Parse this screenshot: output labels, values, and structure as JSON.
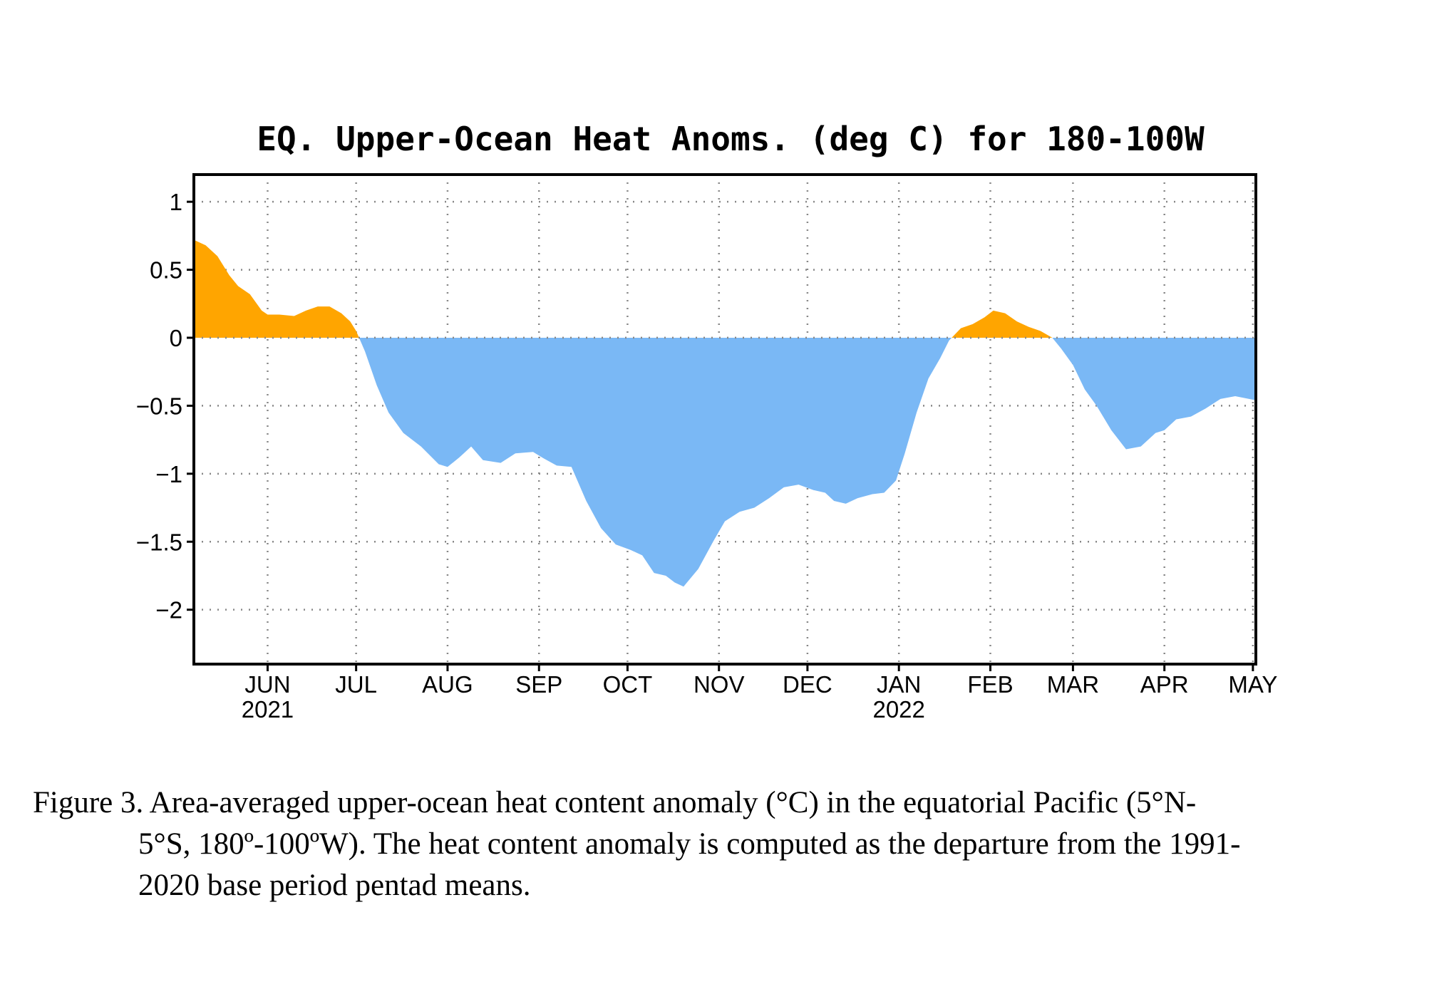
{
  "chart_data": {
    "type": "area",
    "title": "EQ. Upper-Ocean Heat Anoms. (deg C) for 180-100W",
    "xlabel": "",
    "ylabel": "",
    "ylim": [
      -2.4,
      1.2
    ],
    "yticks": [
      1,
      0.5,
      0,
      -0.5,
      -1,
      -1.5,
      -2
    ],
    "ytick_labels": [
      "1",
      "0.5",
      "0",
      "−0.5",
      "−1",
      "−1.5",
      "−2"
    ],
    "grid": true,
    "xlim": [
      "2021-05-07",
      "2022-05-02"
    ],
    "x_ticks": [
      {
        "date": "2021-06-01",
        "label": "JUN",
        "year": "2021"
      },
      {
        "date": "2021-07-01",
        "label": "JUL",
        "year": ""
      },
      {
        "date": "2021-08-01",
        "label": "AUG",
        "year": ""
      },
      {
        "date": "2021-09-01",
        "label": "SEP",
        "year": ""
      },
      {
        "date": "2021-10-01",
        "label": "OCT",
        "year": ""
      },
      {
        "date": "2021-11-01",
        "label": "NOV",
        "year": ""
      },
      {
        "date": "2021-12-01",
        "label": "DEC",
        "year": ""
      },
      {
        "date": "2022-01-01",
        "label": "JAN",
        "year": "2022"
      },
      {
        "date": "2022-02-01",
        "label": "FEB",
        "year": ""
      },
      {
        "date": "2022-03-01",
        "label": "MAR",
        "year": ""
      },
      {
        "date": "2022-04-01",
        "label": "APR",
        "year": ""
      },
      {
        "date": "2022-05-01",
        "label": "MAY",
        "year": ""
      }
    ],
    "positive_color": "#FFA500",
    "negative_color": "#7AB8F5",
    "series": [
      {
        "x": [
          "2021-05-07",
          "2021-05-11",
          "2021-05-15",
          "2021-05-19",
          "2021-05-22",
          "2021-05-26",
          "2021-05-30",
          "2021-06-01",
          "2021-06-05",
          "2021-06-10",
          "2021-06-14",
          "2021-06-18",
          "2021-06-22",
          "2021-06-26",
          "2021-06-29",
          "2021-07-01",
          "2021-07-04",
          "2021-07-08",
          "2021-07-12",
          "2021-07-17",
          "2021-07-23",
          "2021-07-29",
          "2021-08-01",
          "2021-08-05",
          "2021-08-09",
          "2021-08-13",
          "2021-08-19",
          "2021-08-24",
          "2021-08-30",
          "2021-09-02",
          "2021-09-07",
          "2021-09-12",
          "2021-09-17",
          "2021-09-22",
          "2021-09-27",
          "2021-10-02",
          "2021-10-06",
          "2021-10-10",
          "2021-10-14",
          "2021-10-17",
          "2021-10-20",
          "2021-10-25",
          "2021-10-30",
          "2021-11-03",
          "2021-11-08",
          "2021-11-13",
          "2021-11-18",
          "2021-11-23",
          "2021-11-28",
          "2021-12-03",
          "2021-12-07",
          "2021-12-10",
          "2021-12-14",
          "2021-12-18",
          "2021-12-23",
          "2021-12-27",
          "2021-12-31",
          "2022-01-03",
          "2022-01-07",
          "2022-01-11",
          "2022-01-15",
          "2022-01-18",
          "2022-01-22",
          "2022-01-26",
          "2022-01-30",
          "2022-02-02",
          "2022-02-06",
          "2022-02-10",
          "2022-02-14",
          "2022-02-18",
          "2022-02-22",
          "2022-02-25",
          "2022-03-01",
          "2022-03-05",
          "2022-03-09",
          "2022-03-14",
          "2022-03-19",
          "2022-03-24",
          "2022-03-29",
          "2022-04-01",
          "2022-04-05",
          "2022-04-10",
          "2022-04-15",
          "2022-04-20",
          "2022-04-25",
          "2022-05-02"
        ],
        "values": [
          0.72,
          0.68,
          0.6,
          0.46,
          0.38,
          0.32,
          0.2,
          0.17,
          0.17,
          0.16,
          0.2,
          0.23,
          0.23,
          0.18,
          0.12,
          0.05,
          -0.1,
          -0.35,
          -0.55,
          -0.7,
          -0.8,
          -0.93,
          -0.95,
          -0.88,
          -0.8,
          -0.9,
          -0.92,
          -0.85,
          -0.84,
          -0.88,
          -0.94,
          -0.95,
          -1.2,
          -1.4,
          -1.52,
          -1.56,
          -1.6,
          -1.73,
          -1.75,
          -1.8,
          -1.83,
          -1.7,
          -1.5,
          -1.35,
          -1.28,
          -1.25,
          -1.18,
          -1.1,
          -1.08,
          -1.12,
          -1.14,
          -1.2,
          -1.22,
          -1.18,
          -1.15,
          -1.14,
          -1.05,
          -0.85,
          -0.55,
          -0.3,
          -0.15,
          -0.02,
          0.07,
          0.1,
          0.15,
          0.2,
          0.18,
          0.12,
          0.08,
          0.05,
          0.0,
          -0.08,
          -0.2,
          -0.38,
          -0.5,
          -0.68,
          -0.82,
          -0.8,
          -0.7,
          -0.68,
          -0.6,
          -0.58,
          -0.52,
          -0.45,
          -0.43,
          -0.46
        ]
      }
    ]
  },
  "caption": {
    "line1": "Figure 3. Area-averaged upper-ocean heat content anomaly (°C) in the equatorial Pacific (5°N-",
    "line2": "5°S, 180º-100ºW). The heat content anomaly is computed as the departure from the 1991-",
    "line3": "2020 base period pentad means."
  }
}
